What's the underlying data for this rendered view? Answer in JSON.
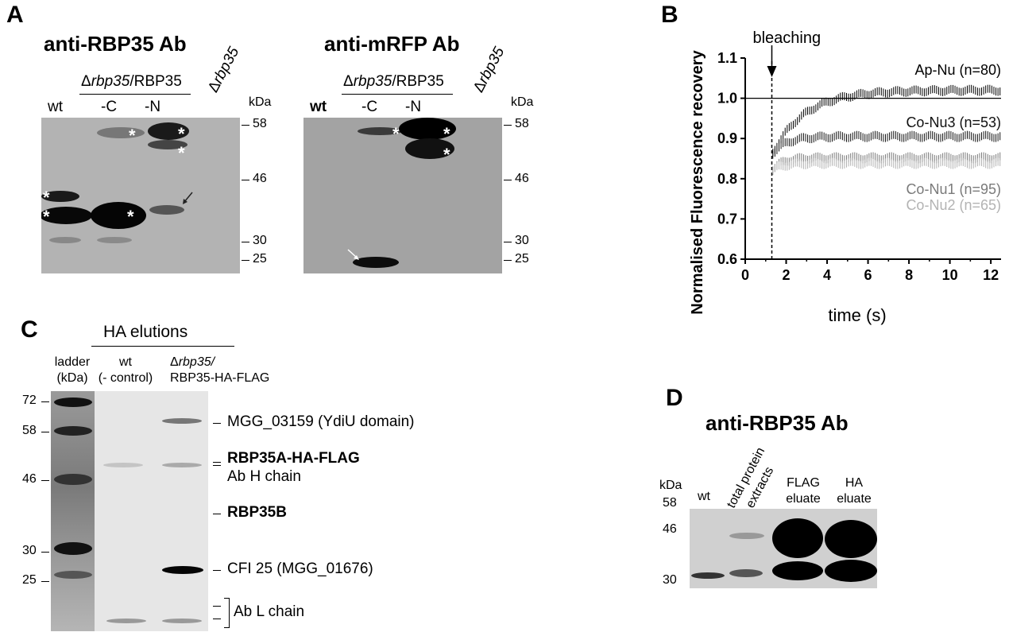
{
  "panelA": {
    "letter": "A",
    "left_title": "anti-RBP35 Ab",
    "right_title": "anti-mRFP Ab",
    "group_label_prefix": "Δ",
    "group_label_italic": "rbp35",
    "group_label_suffix": "/RBP35",
    "lanes": {
      "wt": "wt",
      "c": "-C",
      "n": "-N",
      "delta": "Δ",
      "delta_italic": "rbp35"
    },
    "kda": "kDa",
    "markers": [
      "58",
      "46",
      "30",
      "25"
    ],
    "star": "*"
  },
  "panelB": {
    "letter": "B",
    "annotation": "bleaching",
    "chart_data": {
      "type": "scatter",
      "xlabel": "time (s)",
      "ylabel": "Normalised Fluorescence recovery",
      "xlim": [
        0,
        12.5
      ],
      "ylim": [
        0.6,
        1.1
      ],
      "xticks": [
        0,
        2,
        4,
        6,
        8,
        10,
        12
      ],
      "yticks": [
        0.6,
        0.7,
        0.8,
        0.9,
        1.0,
        1.1
      ],
      "ytick_labels": [
        "0.6",
        "0.7",
        "0.8",
        "0.9",
        "1.0",
        "1.1"
      ],
      "reference_line": 1.0,
      "bleach_time": 1.3,
      "series": [
        {
          "name": "Ap-Nu (n=80)",
          "color": "#000000",
          "start": 0.86,
          "plateau": 1.02,
          "tau": 1.6
        },
        {
          "name": "Co-Nu3 (n=53)",
          "color": "#111111",
          "start": 0.86,
          "plateau": 0.905,
          "tau": 0.7
        },
        {
          "name": "Co-Nu1 (n=95)",
          "color": "#7a7a7a",
          "start": 0.82,
          "plateau": 0.852,
          "tau": 0.5
        },
        {
          "name": "Co-Nu2 (n=65)",
          "color": "#b3b3b3",
          "start": 0.82,
          "plateau": 0.838,
          "tau": 0.5
        }
      ]
    }
  },
  "panelC": {
    "letter": "C",
    "header": "HA elutions",
    "lane_ladder": [
      "ladder",
      "(kDa)"
    ],
    "lane_wt": [
      "wt",
      "(- control)"
    ],
    "lane_strain_prefix": "Δ",
    "lane_strain_italic": "rbp35/",
    "lane_strain_line2": "RBP35-HA-FLAG",
    "markers": [
      "72",
      "58",
      "46",
      "30",
      "25"
    ],
    "annotations": [
      {
        "text": "MGG_03159 (YdiU domain)",
        "bold": false
      },
      {
        "text": "RBP35A-HA-FLAG",
        "bold": true
      },
      {
        "text": "Ab H chain",
        "bold": false
      },
      {
        "text": "RBP35B",
        "bold": true
      },
      {
        "text": "CFI 25 (MGG_01676)",
        "bold": false
      },
      {
        "text": "Ab L chain",
        "bold": false
      }
    ]
  },
  "panelD": {
    "letter": "D",
    "title": "anti-RBP35 Ab",
    "kda": "kDa",
    "markers": [
      "58",
      "46",
      "30"
    ],
    "lane_wt": "wt",
    "lane_total": [
      "total protein",
      "extracts"
    ],
    "lane_flag": [
      "FLAG",
      "eluate"
    ],
    "lane_ha": [
      "HA",
      "eluate"
    ]
  }
}
